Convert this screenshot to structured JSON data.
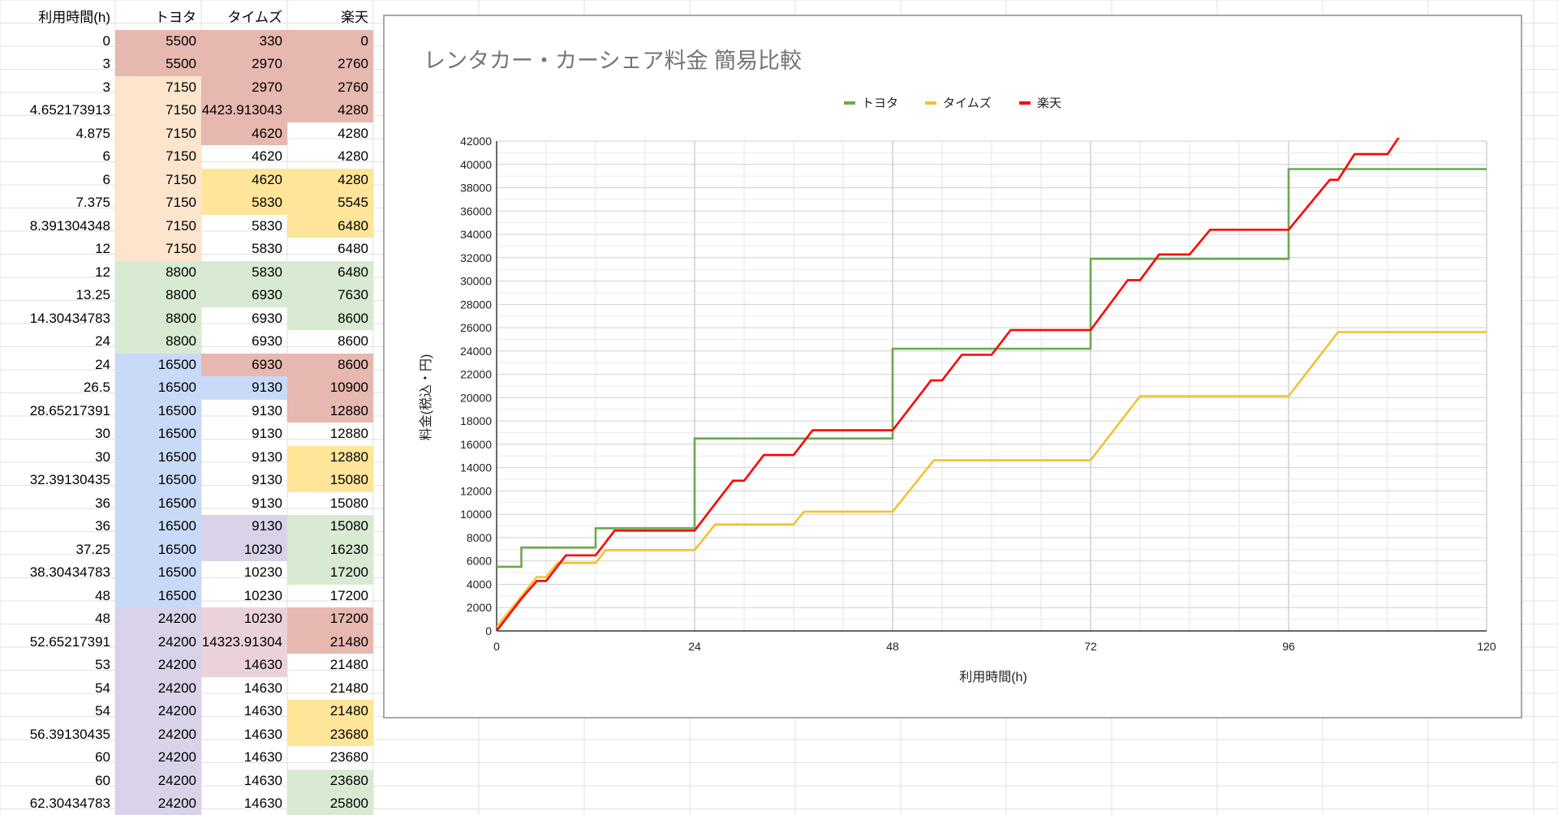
{
  "spreadsheet": {
    "headers": [
      "利用時間(h)",
      "トヨタ",
      "タイムズ",
      "楽天"
    ],
    "rows": [
      [
        "0",
        "5500",
        "330",
        "0"
      ],
      [
        "3",
        "5500",
        "2970",
        "2760"
      ],
      [
        "3",
        "7150",
        "2970",
        "2760"
      ],
      [
        "4.652173913",
        "7150",
        "4423.913043",
        "4280"
      ],
      [
        "4.875",
        "7150",
        "4620",
        "4280"
      ],
      [
        "6",
        "7150",
        "4620",
        "4280"
      ],
      [
        "6",
        "7150",
        "4620",
        "4280"
      ],
      [
        "7.375",
        "7150",
        "5830",
        "5545"
      ],
      [
        "8.391304348",
        "7150",
        "5830",
        "6480"
      ],
      [
        "12",
        "7150",
        "5830",
        "6480"
      ],
      [
        "12",
        "8800",
        "5830",
        "6480"
      ],
      [
        "13.25",
        "8800",
        "6930",
        "7630"
      ],
      [
        "14.30434783",
        "8800",
        "6930",
        "8600"
      ],
      [
        "24",
        "8800",
        "6930",
        "8600"
      ],
      [
        "24",
        "16500",
        "6930",
        "8600"
      ],
      [
        "26.5",
        "16500",
        "9130",
        "10900"
      ],
      [
        "28.65217391",
        "16500",
        "9130",
        "12880"
      ],
      [
        "30",
        "16500",
        "9130",
        "12880"
      ],
      [
        "30",
        "16500",
        "9130",
        "12880"
      ],
      [
        "32.39130435",
        "16500",
        "9130",
        "15080"
      ],
      [
        "36",
        "16500",
        "9130",
        "15080"
      ],
      [
        "36",
        "16500",
        "9130",
        "15080"
      ],
      [
        "37.25",
        "16500",
        "10230",
        "16230"
      ],
      [
        "38.30434783",
        "16500",
        "10230",
        "17200"
      ],
      [
        "48",
        "16500",
        "10230",
        "17200"
      ],
      [
        "48",
        "24200",
        "10230",
        "17200"
      ],
      [
        "52.65217391",
        "24200",
        "14323.91304",
        "21480"
      ],
      [
        "53",
        "24200",
        "14630",
        "21480"
      ],
      [
        "54",
        "24200",
        "14630",
        "21480"
      ],
      [
        "54",
        "24200",
        "14630",
        "21480"
      ],
      [
        "56.39130435",
        "24200",
        "14630",
        "23680"
      ],
      [
        "60",
        "24200",
        "14630",
        "23680"
      ],
      [
        "60",
        "24200",
        "14630",
        "23680"
      ],
      [
        "62.30434783",
        "24200",
        "14630",
        "25800"
      ]
    ],
    "cell_colors": [
      [
        null,
        "#e6b8af",
        "#e6b8af",
        "#e6b8af"
      ],
      [
        null,
        "#e6b8af",
        "#e6b8af",
        "#e6b8af"
      ],
      [
        null,
        "#fce5cd",
        "#e6b8af",
        "#e6b8af"
      ],
      [
        null,
        "#fce5cd",
        "#e6b8af",
        "#e6b8af"
      ],
      [
        null,
        "#fce5cd",
        "#e6b8af",
        null
      ],
      [
        null,
        "#fce5cd",
        null,
        null
      ],
      [
        null,
        "#fce5cd",
        "#ffe599",
        "#ffe599"
      ],
      [
        null,
        "#fce5cd",
        "#ffe599",
        "#ffe599"
      ],
      [
        null,
        "#fce5cd",
        null,
        "#ffe599"
      ],
      [
        null,
        "#fce5cd",
        null,
        null
      ],
      [
        null,
        "#d9ead3",
        "#d9ead3",
        "#d9ead3"
      ],
      [
        null,
        "#d9ead3",
        "#d9ead3",
        "#d9ead3"
      ],
      [
        null,
        "#d9ead3",
        null,
        "#d9ead3"
      ],
      [
        null,
        "#d9ead3",
        null,
        null
      ],
      [
        null,
        "#c9daf8",
        "#e6b8af",
        "#e6b8af"
      ],
      [
        null,
        "#c9daf8",
        "#c9daf8",
        "#e6b8af"
      ],
      [
        null,
        "#c9daf8",
        null,
        "#e6b8af"
      ],
      [
        null,
        "#c9daf8",
        null,
        null
      ],
      [
        null,
        "#c9daf8",
        null,
        "#ffe599"
      ],
      [
        null,
        "#c9daf8",
        null,
        "#ffe599"
      ],
      [
        null,
        "#c9daf8",
        null,
        null
      ],
      [
        null,
        "#c9daf8",
        "#d9d2e9",
        "#d9ead3"
      ],
      [
        null,
        "#c9daf8",
        "#d9d2e9",
        "#d9ead3"
      ],
      [
        null,
        "#c9daf8",
        null,
        "#d9ead3"
      ],
      [
        null,
        "#c9daf8",
        null,
        null
      ],
      [
        null,
        "#d9d2e9",
        "#ead1dc",
        "#e6b8af"
      ],
      [
        null,
        "#d9d2e9",
        "#ead1dc",
        "#e6b8af"
      ],
      [
        null,
        "#d9d2e9",
        "#ead1dc",
        null
      ],
      [
        null,
        "#d9d2e9",
        null,
        null
      ],
      [
        null,
        "#d9d2e9",
        null,
        "#ffe599"
      ],
      [
        null,
        "#d9d2e9",
        null,
        "#ffe599"
      ],
      [
        null,
        "#d9d2e9",
        null,
        null
      ],
      [
        null,
        "#d9d2e9",
        null,
        "#d9ead3"
      ],
      [
        null,
        "#d9d2e9",
        null,
        "#d9ead3"
      ]
    ]
  },
  "chart_data": {
    "type": "line",
    "title": "レンタカー・カーシェア料金 簡易比較",
    "xlabel": "利用時間(h)",
    "ylabel": "料金(税込・円)",
    "xlim": [
      0,
      120
    ],
    "ylim": [
      0,
      42000
    ],
    "xticks": [
      0,
      24,
      48,
      72,
      96,
      120
    ],
    "yticks": [
      0,
      2000,
      4000,
      6000,
      8000,
      10000,
      12000,
      14000,
      16000,
      18000,
      20000,
      22000,
      24000,
      26000,
      28000,
      30000,
      32000,
      34000,
      36000,
      38000,
      40000,
      42000
    ],
    "grid": true,
    "legend_position": "top",
    "series": [
      {
        "name": "トヨタ",
        "color": "#6aa84f",
        "x": [
          0,
          3,
          3,
          12,
          12,
          24,
          24,
          48,
          48,
          72,
          72,
          96,
          96,
          120
        ],
        "y": [
          5500,
          5500,
          7150,
          7150,
          8800,
          8800,
          16500,
          16500,
          24200,
          24200,
          31900,
          31900,
          39600,
          39600
        ]
      },
      {
        "name": "タイムズ",
        "color": "#f1c232",
        "x": [
          0,
          4.652173913,
          4.875,
          6,
          7.375,
          12,
          13.25,
          24,
          26.5,
          36,
          37.25,
          48,
          52.65217391,
          53,
          72,
          78,
          96,
          102,
          120
        ],
        "y": [
          330,
          4423.913043,
          4620,
          4620,
          5830,
          5830,
          6930,
          6930,
          9130,
          9130,
          10230,
          10230,
          14323.91304,
          14630,
          14630,
          20130,
          20130,
          25630,
          25630
        ]
      },
      {
        "name": "楽天",
        "color": "#ff0000",
        "x": [
          0,
          3,
          4.875,
          6,
          7.375,
          8.391304348,
          12,
          13.25,
          14.30434783,
          24,
          26.5,
          28.65217391,
          30,
          32.39130435,
          36,
          37.25,
          38.30434783,
          48,
          52.65217391,
          54,
          56.39130435,
          60,
          62.30434783,
          72,
          76.5,
          78,
          80.3,
          84,
          86.5,
          96,
          101,
          102,
          104,
          108,
          110,
          120
        ],
        "y": [
          0,
          2760,
          4280,
          4280,
          5545,
          6480,
          6480,
          7630,
          8600,
          8600,
          10900,
          12880,
          12880,
          15080,
          15080,
          16230,
          17200,
          17200,
          21480,
          21480,
          23680,
          23680,
          25800,
          25800,
          30080,
          30080,
          32280,
          32280,
          34400,
          34400,
          38680,
          38680,
          40880,
          40880,
          43000,
          43000
        ]
      }
    ]
  }
}
